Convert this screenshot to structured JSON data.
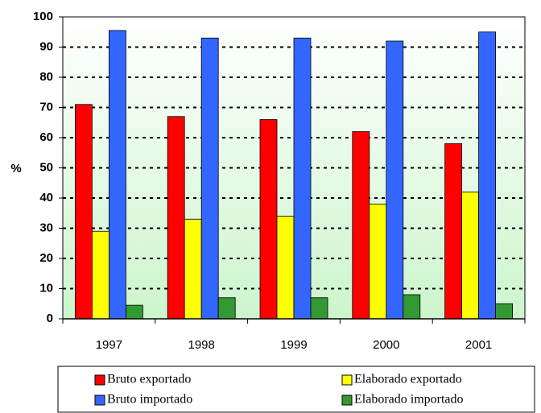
{
  "chart_data": {
    "type": "bar",
    "ylabel": "%",
    "categories": [
      "1997",
      "1998",
      "1999",
      "2000",
      "2001"
    ],
    "series": [
      {
        "name": "Bruto exportado",
        "color": "#ff0000",
        "values": [
          71,
          67,
          66,
          62,
          58
        ]
      },
      {
        "name": "Elaborado exportado",
        "color": "#ffff00",
        "values": [
          29,
          33,
          34,
          38,
          42
        ]
      },
      {
        "name": "Bruto importado",
        "color": "#3366ff",
        "values": [
          95.5,
          93,
          93,
          92,
          95
        ]
      },
      {
        "name": "Elaborado importado",
        "color": "#339933",
        "values": [
          4.5,
          7,
          7,
          8,
          5
        ]
      }
    ],
    "ylim": [
      0,
      100
    ],
    "yticks": [
      0,
      10,
      20,
      30,
      40,
      50,
      60,
      70,
      80,
      90,
      100
    ],
    "grid": true
  }
}
